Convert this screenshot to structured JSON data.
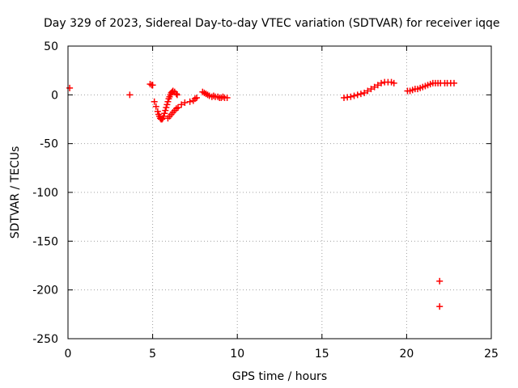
{
  "chart_data": {
    "type": "scatter",
    "title": "Day 329 of 2023, Sidereal Day-to-day VTEC variation (SDTVAR) for receiver iqqe",
    "xlabel": "GPS time / hours",
    "ylabel": "SDTVAR / TECUs",
    "xlim": [
      0,
      25
    ],
    "ylim": [
      -250,
      50
    ],
    "xticks": [
      0,
      5,
      10,
      15,
      20,
      25
    ],
    "yticks": [
      -250,
      -200,
      -150,
      -100,
      -50,
      0,
      50
    ],
    "grid": true,
    "marker": "+",
    "series": [
      {
        "name": "SDTVAR",
        "color": "#ff0000",
        "points": [
          [
            0.1,
            7
          ],
          [
            3.65,
            0
          ],
          [
            4.85,
            11
          ],
          [
            4.95,
            10
          ],
          [
            5.0,
            10
          ],
          [
            5.1,
            -7
          ],
          [
            5.2,
            -12
          ],
          [
            5.3,
            -17
          ],
          [
            5.35,
            -20
          ],
          [
            5.4,
            -22
          ],
          [
            5.45,
            -24
          ],
          [
            5.5,
            -25
          ],
          [
            5.55,
            -25
          ],
          [
            5.6,
            -24
          ],
          [
            5.65,
            -22
          ],
          [
            5.7,
            -19
          ],
          [
            5.75,
            -16
          ],
          [
            5.8,
            -13
          ],
          [
            5.85,
            -10
          ],
          [
            5.9,
            -7
          ],
          [
            5.95,
            -4
          ],
          [
            6.0,
            -2
          ],
          [
            6.05,
            0
          ],
          [
            6.1,
            2
          ],
          [
            6.15,
            3
          ],
          [
            6.2,
            4
          ],
          [
            6.3,
            3
          ],
          [
            6.4,
            1
          ],
          [
            6.45,
            0
          ],
          [
            5.9,
            -24
          ],
          [
            6.0,
            -22
          ],
          [
            6.1,
            -20
          ],
          [
            6.2,
            -18
          ],
          [
            6.3,
            -16
          ],
          [
            6.4,
            -14
          ],
          [
            6.5,
            -13
          ],
          [
            6.7,
            -10
          ],
          [
            6.9,
            -8
          ],
          [
            7.2,
            -7
          ],
          [
            7.4,
            -6
          ],
          [
            7.5,
            -4
          ],
          [
            7.6,
            -3
          ],
          [
            7.95,
            3
          ],
          [
            8.05,
            2
          ],
          [
            8.15,
            1
          ],
          [
            8.25,
            0
          ],
          [
            8.35,
            -1
          ],
          [
            8.5,
            -2
          ],
          [
            8.6,
            -1
          ],
          [
            8.7,
            -2
          ],
          [
            8.85,
            -2
          ],
          [
            8.95,
            -3
          ],
          [
            9.05,
            -3
          ],
          [
            9.15,
            -2
          ],
          [
            9.25,
            -3
          ],
          [
            9.4,
            -3
          ],
          [
            16.3,
            -3
          ],
          [
            16.5,
            -2.5
          ],
          [
            16.7,
            -2
          ],
          [
            16.9,
            -1
          ],
          [
            17.1,
            0
          ],
          [
            17.3,
            1
          ],
          [
            17.5,
            2
          ],
          [
            17.7,
            4
          ],
          [
            17.9,
            6
          ],
          [
            18.1,
            8
          ],
          [
            18.3,
            10
          ],
          [
            18.5,
            12
          ],
          [
            18.7,
            13
          ],
          [
            18.9,
            13
          ],
          [
            19.1,
            13
          ],
          [
            19.25,
            12
          ],
          [
            20.05,
            4
          ],
          [
            20.2,
            4
          ],
          [
            20.35,
            5
          ],
          [
            20.5,
            6
          ],
          [
            20.65,
            6
          ],
          [
            20.8,
            7
          ],
          [
            20.95,
            8
          ],
          [
            21.1,
            9
          ],
          [
            21.25,
            10
          ],
          [
            21.4,
            11
          ],
          [
            21.55,
            12
          ],
          [
            21.7,
            12
          ],
          [
            21.85,
            12
          ],
          [
            22.0,
            12
          ],
          [
            22.25,
            12
          ],
          [
            22.4,
            12
          ],
          [
            22.6,
            12
          ],
          [
            22.8,
            12
          ],
          [
            21.95,
            -191
          ],
          [
            21.95,
            -217
          ]
        ]
      }
    ]
  }
}
